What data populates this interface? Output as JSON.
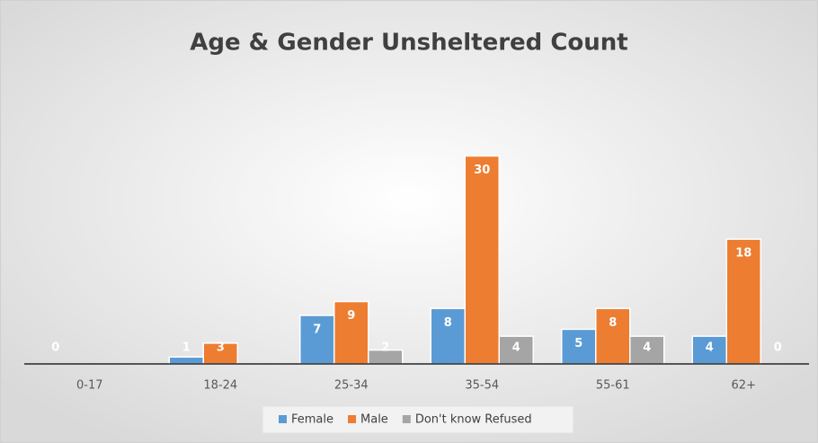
{
  "chart_data": {
    "type": "bar",
    "title": "Age & Gender Unsheltered Count",
    "categories": [
      "0-17",
      "18-24",
      "25-34",
      "35-54",
      "55-61",
      "62+"
    ],
    "series": [
      {
        "name": "Female",
        "color": "#5b9bd5",
        "values": [
          0,
          1,
          7,
          8,
          5,
          4
        ]
      },
      {
        "name": "Male",
        "color": "#ed7d31",
        "values": [
          null,
          3,
          9,
          30,
          8,
          18
        ]
      },
      {
        "name": "Don't know Refused",
        "color": "#a5a5a5",
        "values": [
          null,
          null,
          2,
          4,
          4,
          0
        ]
      }
    ],
    "ylim": [
      0,
      35
    ],
    "legend": "bottom"
  }
}
